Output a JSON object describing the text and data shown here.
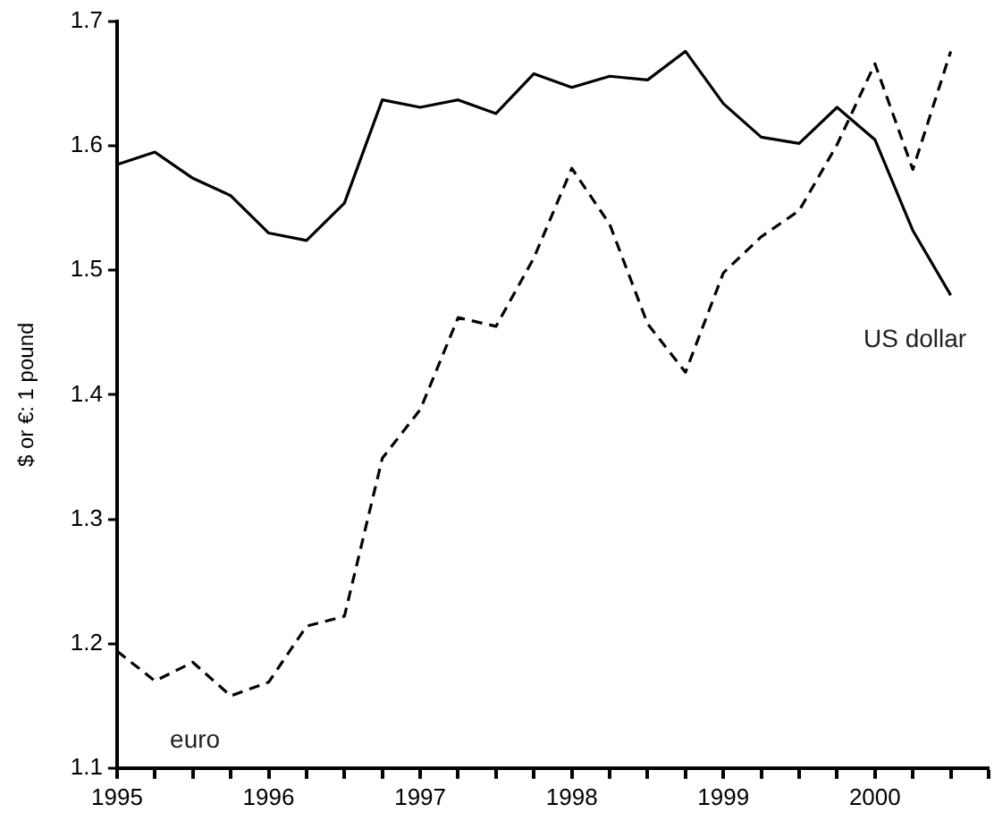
{
  "chart_data": {
    "type": "line",
    "ylabel": "$ or €: 1 pound",
    "x": [
      1995,
      1995.25,
      1995.5,
      1995.75,
      1996,
      1996.25,
      1996.5,
      1996.75,
      1997,
      1997.25,
      1997.5,
      1997.75,
      1998,
      1998.25,
      1998.5,
      1998.75,
      1999,
      1999.25,
      1999.5,
      1999.75,
      2000,
      2000.25,
      2000.5
    ],
    "series": [
      {
        "name": "US dollar",
        "color": "#000000",
        "line_style": "solid",
        "values": [
          1.585,
          1.595,
          1.574,
          1.56,
          1.53,
          1.524,
          1.554,
          1.637,
          1.631,
          1.637,
          1.626,
          1.658,
          1.647,
          1.656,
          1.653,
          1.676,
          1.634,
          1.607,
          1.602,
          1.631,
          1.605,
          1.532,
          1.48
        ]
      },
      {
        "name": "euro",
        "color": "#000000",
        "line_style": "dashed",
        "values": [
          1.194,
          1.17,
          1.185,
          1.158,
          1.169,
          1.214,
          1.222,
          1.349,
          1.388,
          1.462,
          1.455,
          1.51,
          1.582,
          1.537,
          1.457,
          1.418,
          1.498,
          1.527,
          1.548,
          1.601,
          1.666,
          1.581,
          1.676
        ]
      }
    ],
    "xlim": [
      1995,
      2000.75
    ],
    "xticks": [
      1995,
      {
        "value": 1995.25,
        "label": null
      },
      {
        "value": 1995.5,
        "label": null
      },
      {
        "value": 1995.75,
        "label": null
      },
      1996,
      {
        "value": 1996.25,
        "label": null
      },
      {
        "value": 1996.5,
        "label": null
      },
      {
        "value": 1996.75,
        "label": null
      },
      1997,
      {
        "value": 1997.25,
        "label": null
      },
      {
        "value": 1997.5,
        "label": null
      },
      {
        "value": 1997.75,
        "label": null
      },
      1998,
      {
        "value": 1998.25,
        "label": null
      },
      {
        "value": 1998.5,
        "label": null
      },
      {
        "value": 1998.75,
        "label": null
      },
      1999,
      {
        "value": 1999.25,
        "label": null
      },
      {
        "value": 1999.5,
        "label": null
      },
      {
        "value": 1999.75,
        "label": null
      },
      2000,
      {
        "value": 2000.25,
        "label": null
      },
      {
        "value": 2000.5,
        "label": null
      },
      {
        "value": 2000.75,
        "label": null
      }
    ],
    "ylim": [
      1.1,
      1.7
    ],
    "yticks": [
      1.1,
      1.2,
      1.3,
      1.4,
      1.5,
      1.6,
      1.7
    ],
    "grid": false,
    "legend": false,
    "marker": "none"
  }
}
